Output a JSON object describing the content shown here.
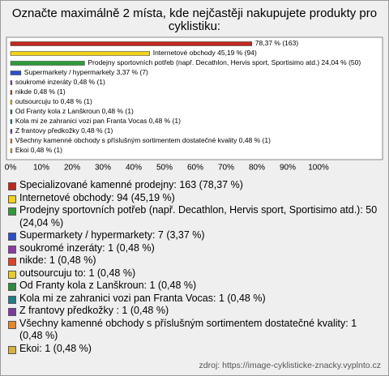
{
  "chart_data": {
    "type": "hbar",
    "title": "Označte maximálně 2 místa, kde nejčastěji nakupujete produkty pro cyklistiku:",
    "categories": [
      null,
      "Internetové obchody",
      "Prodejny sportovních potřeb (např. Decathlon, Hervis sport, Sportisimo atd.)",
      "Supermarkety / hypermarkety",
      "soukromé inzeráty",
      "nikde",
      "outsourcuju to",
      "Od Franty kola z Lanškroun",
      "Kola mi ze zahranici vozi pan Franta Vocas",
      "Z frantovy předkožky ",
      "Všechny kamenné obchody s příslušným sortimentem dostatečné kvality",
      "Ekoi"
    ],
    "values": [
      78.37,
      45.19,
      24.04,
      3.37,
      0.48,
      0.48,
      0.48,
      0.48,
      0.48,
      0.48,
      0.48,
      0.48
    ],
    "value_labels": [
      "78,37 % (163)",
      "45,19 % (94)",
      "24,04 % (50)",
      "3,37 % (7)",
      "0,48 % (1)",
      "0,48 % (1)",
      "0,48 % (1)",
      "0,48 % (1)",
      "0,48 % (1)",
      "0,48 % (1)",
      "0,48 % (1)",
      "0,48 % (1)"
    ],
    "colors": [
      "#c0281e",
      "#f2d21a",
      "#2f9a3a",
      "#2c4fc9",
      "#8a3aa6",
      "#e0402a",
      "#e8cc2a",
      "#2e8a3c",
      "#1e7d86",
      "#7a3aa0",
      "#e8862a",
      "#d8b23a"
    ],
    "legend_labels": [
      "Specializované kamenné prodejny: 163 (78,37 %)",
      "Internetové obchody: 94 (45,19 %)",
      "Prodejny sportovních potřeb (např. Decathlon, Hervis sport, Sportisimo atd.): 50 (24,04 %)",
      "Supermarkety / hypermarkety: 7 (3,37 %)",
      "soukromé inzeráty: 1 (0,48 %)",
      "nikde: 1 (0,48 %)",
      "outsourcuju to: 1 (0,48 %)",
      "Od Franty kola z Lanškroun: 1 (0,48 %)",
      "Kola mi ze zahranici vozi pan Franta Vocas: 1 (0,48 %)",
      "Z frantovy předkožky : 1 (0,48 %)",
      "Všechny kamenné obchody s příslušným sortimentem dostatečné kvality: 1 (0,48 %)",
      "Ekoi: 1 (0,48 %)"
    ],
    "xlim": [
      0,
      100
    ],
    "xticks": [
      {
        "value": 0,
        "label": "0%"
      },
      {
        "value": 10,
        "label": "10%"
      },
      {
        "value": 20,
        "label": "20%"
      },
      {
        "value": 30,
        "label": "30%"
      },
      {
        "value": 40,
        "label": "40%"
      },
      {
        "value": 50,
        "label": "50%"
      },
      {
        "value": 60,
        "label": "60%"
      },
      {
        "value": 70,
        "label": "70%"
      },
      {
        "value": 80,
        "label": "80%"
      },
      {
        "value": 90,
        "label": "90%"
      },
      {
        "value": 100,
        "label": "100%"
      }
    ],
    "source": "zdroj: https://image-cyklisticke-znacky.vyplnto.cz"
  }
}
